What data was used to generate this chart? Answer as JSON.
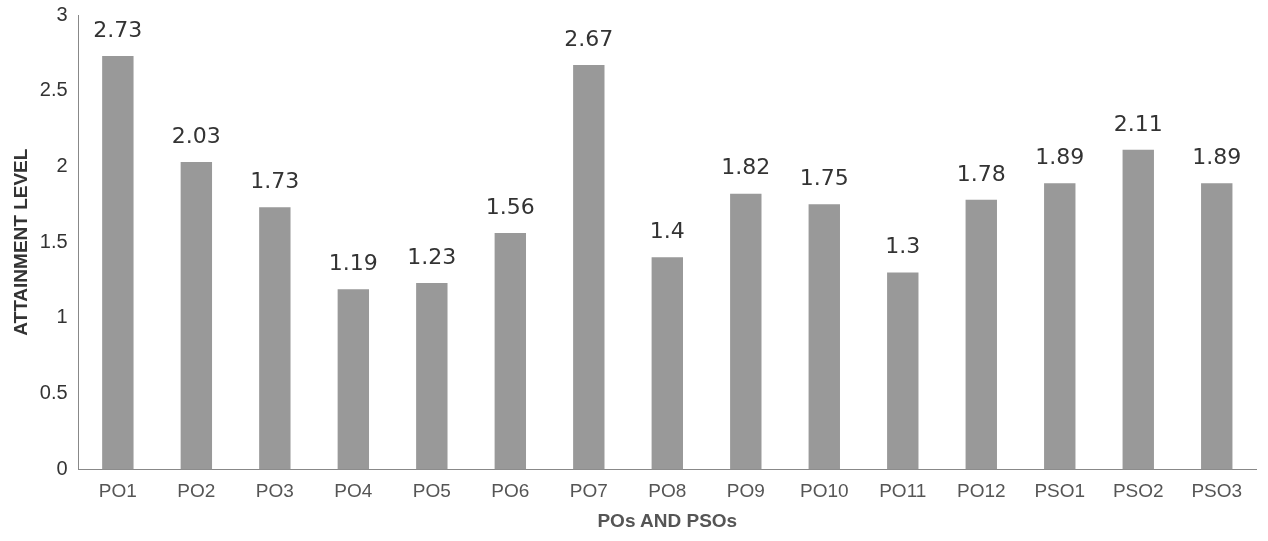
{
  "chart_data": {
    "type": "bar",
    "xlabel": "POs AND PSOs",
    "ylabel": "ATTAINMENT LEVEL",
    "categories": [
      "PO1",
      "PO2",
      "PO3",
      "PO4",
      "PO5",
      "PO6",
      "PO7",
      "PO8",
      "PO9",
      "PO10",
      "PO11",
      "PO12",
      "PSO1",
      "PSO2",
      "PSO3"
    ],
    "values": [
      2.73,
      2.03,
      1.73,
      1.19,
      1.23,
      1.56,
      2.67,
      1.4,
      1.82,
      1.75,
      1.3,
      1.78,
      1.89,
      2.11,
      1.89
    ],
    "color": "#999999",
    "ylim": [
      0,
      3
    ],
    "yticks": [
      0,
      0.5,
      1,
      1.5,
      2,
      2.5,
      3
    ],
    "grid": false,
    "data_labels": true,
    "legend": false
  }
}
